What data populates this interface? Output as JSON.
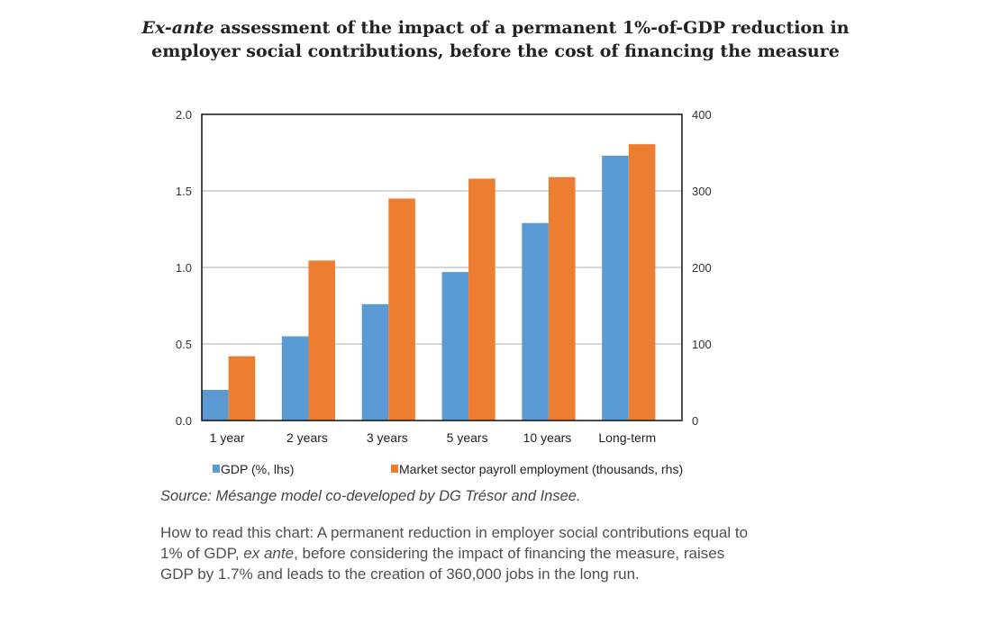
{
  "title": {
    "italic": "Ex-ante",
    "rest": " assessment of the impact of a permanent 1%-of-GDP reduction in employer social contributions, before the cost of financing the measure"
  },
  "source": "Source: Mésange model co-developed by DG Trésor and Insee.",
  "howto": {
    "part1": "How to read this chart: A permanent reduction in employer social contributions equal to 1% of GDP, ",
    "italic": "ex ante",
    "part2": ", before considering the impact of financing the measure, raises GDP by 1.7% and leads to the creation of 360,000 jobs in the long run."
  },
  "chart_data": {
    "type": "bar",
    "title": "Ex-ante assessment of the impact of a permanent 1%-of-GDP reduction in employer social contributions, before the cost of financing the measure",
    "categories": [
      "1 year",
      "2 years",
      "3 years",
      "5 years",
      "10 years",
      "Long-term"
    ],
    "series": [
      {
        "name": "GDP (%, lhs)",
        "axis": "left",
        "color": "#5b9bd5",
        "values": [
          0.2,
          0.55,
          0.76,
          0.97,
          1.29,
          1.73
        ]
      },
      {
        "name": "Market sector payroll employment (thousands, rhs)",
        "axis": "right",
        "color": "#ed7d31",
        "values": [
          84,
          209,
          290,
          316,
          318,
          361
        ]
      }
    ],
    "ylim_left": [
      0,
      2.0
    ],
    "yticks_left": [
      "0.0",
      "0.5",
      "1.0",
      "1.5",
      "2.0"
    ],
    "ylim_right": [
      0,
      400
    ],
    "yticks_right": [
      "0",
      "100",
      "200",
      "300",
      "400"
    ],
    "grid": true,
    "legend": "bottom"
  }
}
